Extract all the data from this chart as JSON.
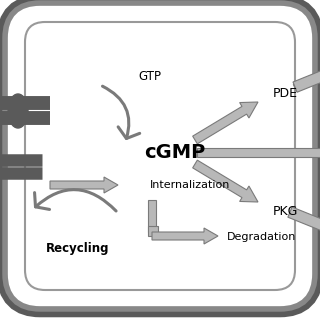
{
  "bg_color": "#ffffff",
  "border_dark": "#5a5a5a",
  "border_light": "#aaaaaa",
  "cell_fill": "#ffffff",
  "arrow_fill": "#b8b8b8",
  "arrow_edge": "#7a7a7a",
  "dark_gray": "#555555",
  "text_color": "#000000",
  "cgmp_label": "cGMP",
  "gtp_label": "GTP",
  "pde_label": "PDE",
  "pkg_label": "PKG",
  "internalization_label": "Internalization",
  "recycling_label": "Recycling",
  "degradation_label": "Degradation",
  "fig_w": 3.2,
  "fig_h": 3.2,
  "dpi": 100
}
